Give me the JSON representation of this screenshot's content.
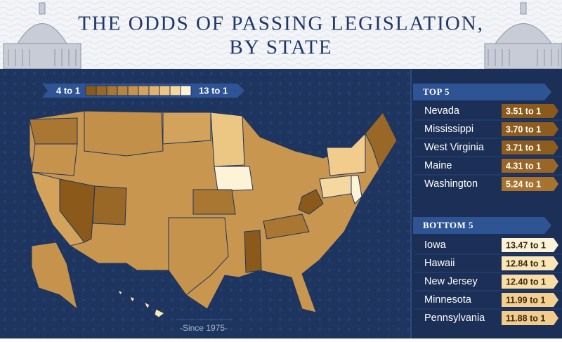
{
  "header": {
    "title_lines": [
      "THE ODDS OF PASSING LEGISLATION,",
      "BY STATE"
    ]
  },
  "legend": {
    "low": "4 to 1",
    "high": "13 to 1"
  },
  "map": {
    "note": "-Since 1975-"
  },
  "top5": {
    "heading": "TOP 5",
    "rows": [
      {
        "state": "Nevada",
        "odds": "3.51 to 1"
      },
      {
        "state": "Mississippi",
        "odds": "3.70 to 1"
      },
      {
        "state": "West Virginia",
        "odds": "3.71 to 1"
      },
      {
        "state": "Maine",
        "odds": "4.31 to 1"
      },
      {
        "state": "Washington",
        "odds": "5.24 to 1"
      }
    ]
  },
  "bottom5": {
    "heading": "BOTTOM 5",
    "rows": [
      {
        "state": "Iowa",
        "odds": "13.47 to 1"
      },
      {
        "state": "Hawaii",
        "odds": "12.84 to 1"
      },
      {
        "state": "New Jersey",
        "odds": "12.40 to 1"
      },
      {
        "state": "Minnesota",
        "odds": "11.99 to 1"
      },
      {
        "state": "Pennsylvania",
        "odds": "11.88 to 1"
      }
    ]
  }
}
